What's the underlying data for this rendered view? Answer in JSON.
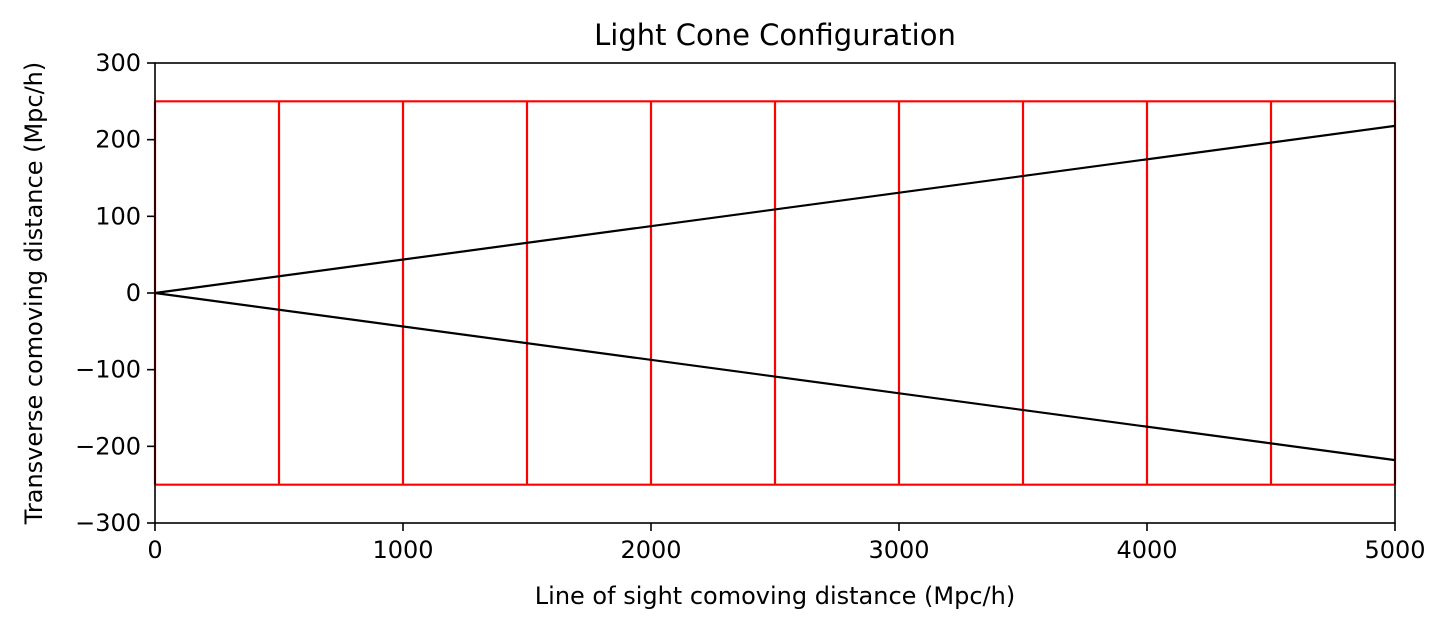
{
  "chart_data": {
    "type": "line",
    "title": "Light Cone Configuration",
    "xlabel": "Line of sight comoving distance (Mpc/h)",
    "ylabel": "Transverse comoving distance (Mpc/h)",
    "xlim": [
      0,
      5000
    ],
    "ylim": [
      -300,
      300
    ],
    "x_ticks": [
      0,
      1000,
      2000,
      3000,
      4000,
      5000
    ],
    "x_tick_labels": [
      "0",
      "1000",
      "2000",
      "3000",
      "4000",
      "5000"
    ],
    "y_ticks": [
      300,
      200,
      100,
      0,
      -100,
      -200,
      -300
    ],
    "y_tick_labels": [
      "300",
      "200",
      "100",
      "0",
      "−100",
      "−200",
      "−300"
    ],
    "grid": false,
    "legend": "none",
    "colors": {
      "cone": "#000000",
      "boxes": "#ff0000",
      "axes": "#000000"
    },
    "cone_lines": [
      {
        "x": [
          0,
          5000
        ],
        "y": [
          0,
          218
        ]
      },
      {
        "x": [
          0,
          5000
        ],
        "y": [
          0,
          -218
        ]
      }
    ],
    "boxes": {
      "x_edges": [
        0,
        500,
        1000,
        1500,
        2000,
        2500,
        3000,
        3500,
        4000,
        4500,
        5000
      ],
      "y_min": -250,
      "y_max": 250
    }
  }
}
